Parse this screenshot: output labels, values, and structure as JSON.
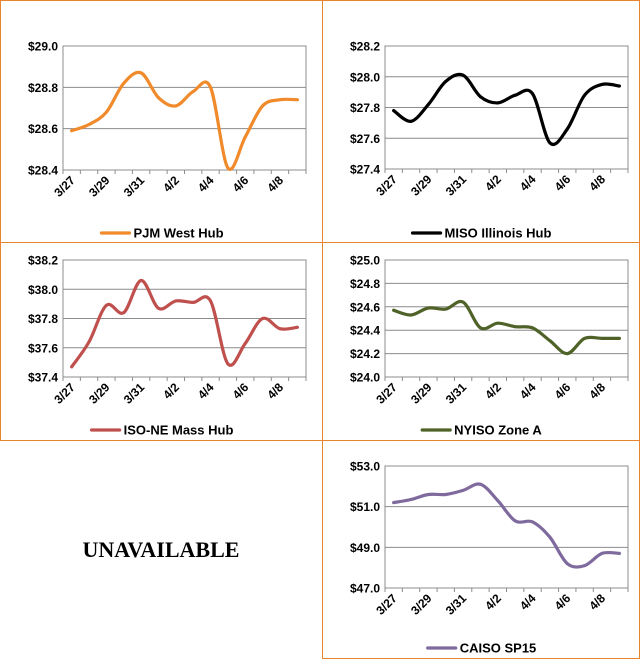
{
  "unavailable_label": "UNAVAILABLE",
  "x_categories": [
    "3/27",
    "3/28",
    "3/29",
    "3/30",
    "3/31",
    "4/1",
    "4/2",
    "4/3",
    "4/4",
    "4/5",
    "4/6",
    "4/7",
    "4/8",
    "4/9"
  ],
  "x_tick_labels": [
    "3/27",
    "3/29",
    "3/31",
    "4/2",
    "4/4",
    "4/6",
    "4/8"
  ],
  "chart_data": [
    {
      "type": "line",
      "legend": "PJM West Hub",
      "color": "#f08a2a",
      "x": [
        "3/27",
        "3/28",
        "3/29",
        "3/30",
        "3/31",
        "4/1",
        "4/2",
        "4/3",
        "4/4",
        "4/5",
        "4/6",
        "4/7",
        "4/8",
        "4/9"
      ],
      "values": [
        28.59,
        28.62,
        28.68,
        28.82,
        28.87,
        28.75,
        28.71,
        28.78,
        28.8,
        28.41,
        28.56,
        28.71,
        28.74,
        28.74
      ],
      "ylim": [
        28.4,
        29.0
      ],
      "yticks": [
        "$28.4",
        "$28.6",
        "$28.8",
        "$29.0"
      ]
    },
    {
      "type": "line",
      "legend": "MISO Illinois Hub",
      "color": "#000000",
      "x": [
        "3/27",
        "3/28",
        "3/29",
        "3/30",
        "3/31",
        "4/1",
        "4/2",
        "4/3",
        "4/4",
        "4/5",
        "4/6",
        "4/7",
        "4/8",
        "4/9"
      ],
      "values": [
        27.78,
        27.71,
        27.82,
        27.97,
        28.01,
        27.87,
        27.83,
        27.88,
        27.89,
        27.57,
        27.66,
        27.88,
        27.95,
        27.94
      ],
      "ylim": [
        27.4,
        28.2
      ],
      "yticks": [
        "$27.4",
        "$27.6",
        "$27.8",
        "$28.0",
        "$28.2"
      ]
    },
    {
      "type": "line",
      "legend": "ISO-NE Mass Hub",
      "color": "#c0504d",
      "x": [
        "3/27",
        "3/28",
        "3/29",
        "3/30",
        "3/31",
        "4/1",
        "4/2",
        "4/3",
        "4/4",
        "4/5",
        "4/6",
        "4/7",
        "4/8",
        "4/9"
      ],
      "values": [
        37.47,
        37.64,
        37.89,
        37.84,
        38.06,
        37.87,
        37.92,
        37.91,
        37.92,
        37.49,
        37.63,
        37.8,
        37.73,
        37.74
      ],
      "ylim": [
        37.4,
        38.2
      ],
      "yticks": [
        "$37.4",
        "$37.6",
        "$37.8",
        "$38.0",
        "$38.2"
      ]
    },
    {
      "type": "line",
      "legend": "NYISO Zone A",
      "color": "#4f6228",
      "x": [
        "3/27",
        "3/28",
        "3/29",
        "3/30",
        "3/31",
        "4/1",
        "4/2",
        "4/3",
        "4/4",
        "4/5",
        "4/6",
        "4/7",
        "4/8",
        "4/9"
      ],
      "values": [
        24.57,
        24.53,
        24.59,
        24.58,
        24.64,
        24.42,
        24.46,
        24.43,
        24.42,
        24.31,
        24.2,
        24.33,
        24.33,
        24.33
      ],
      "ylim": [
        24.0,
        25.0
      ],
      "yticks": [
        "$24.0",
        "$24.2",
        "$24.4",
        "$24.6",
        "$24.8",
        "$25.0"
      ]
    },
    {
      "type": "line",
      "legend": "CAISO SP15",
      "color": "#7f6a9e",
      "x": [
        "3/27",
        "3/28",
        "3/29",
        "3/30",
        "3/31",
        "4/1",
        "4/2",
        "4/3",
        "4/4",
        "4/5",
        "4/6",
        "4/7",
        "4/8",
        "4/9"
      ],
      "values": [
        51.2,
        51.35,
        51.6,
        51.6,
        51.8,
        52.1,
        51.3,
        50.3,
        50.25,
        49.5,
        48.2,
        48.1,
        48.7,
        48.7
      ],
      "ylim": [
        47.0,
        53.0
      ],
      "yticks": [
        "$47.0",
        "$49.0",
        "$51.0",
        "$53.0"
      ]
    }
  ]
}
